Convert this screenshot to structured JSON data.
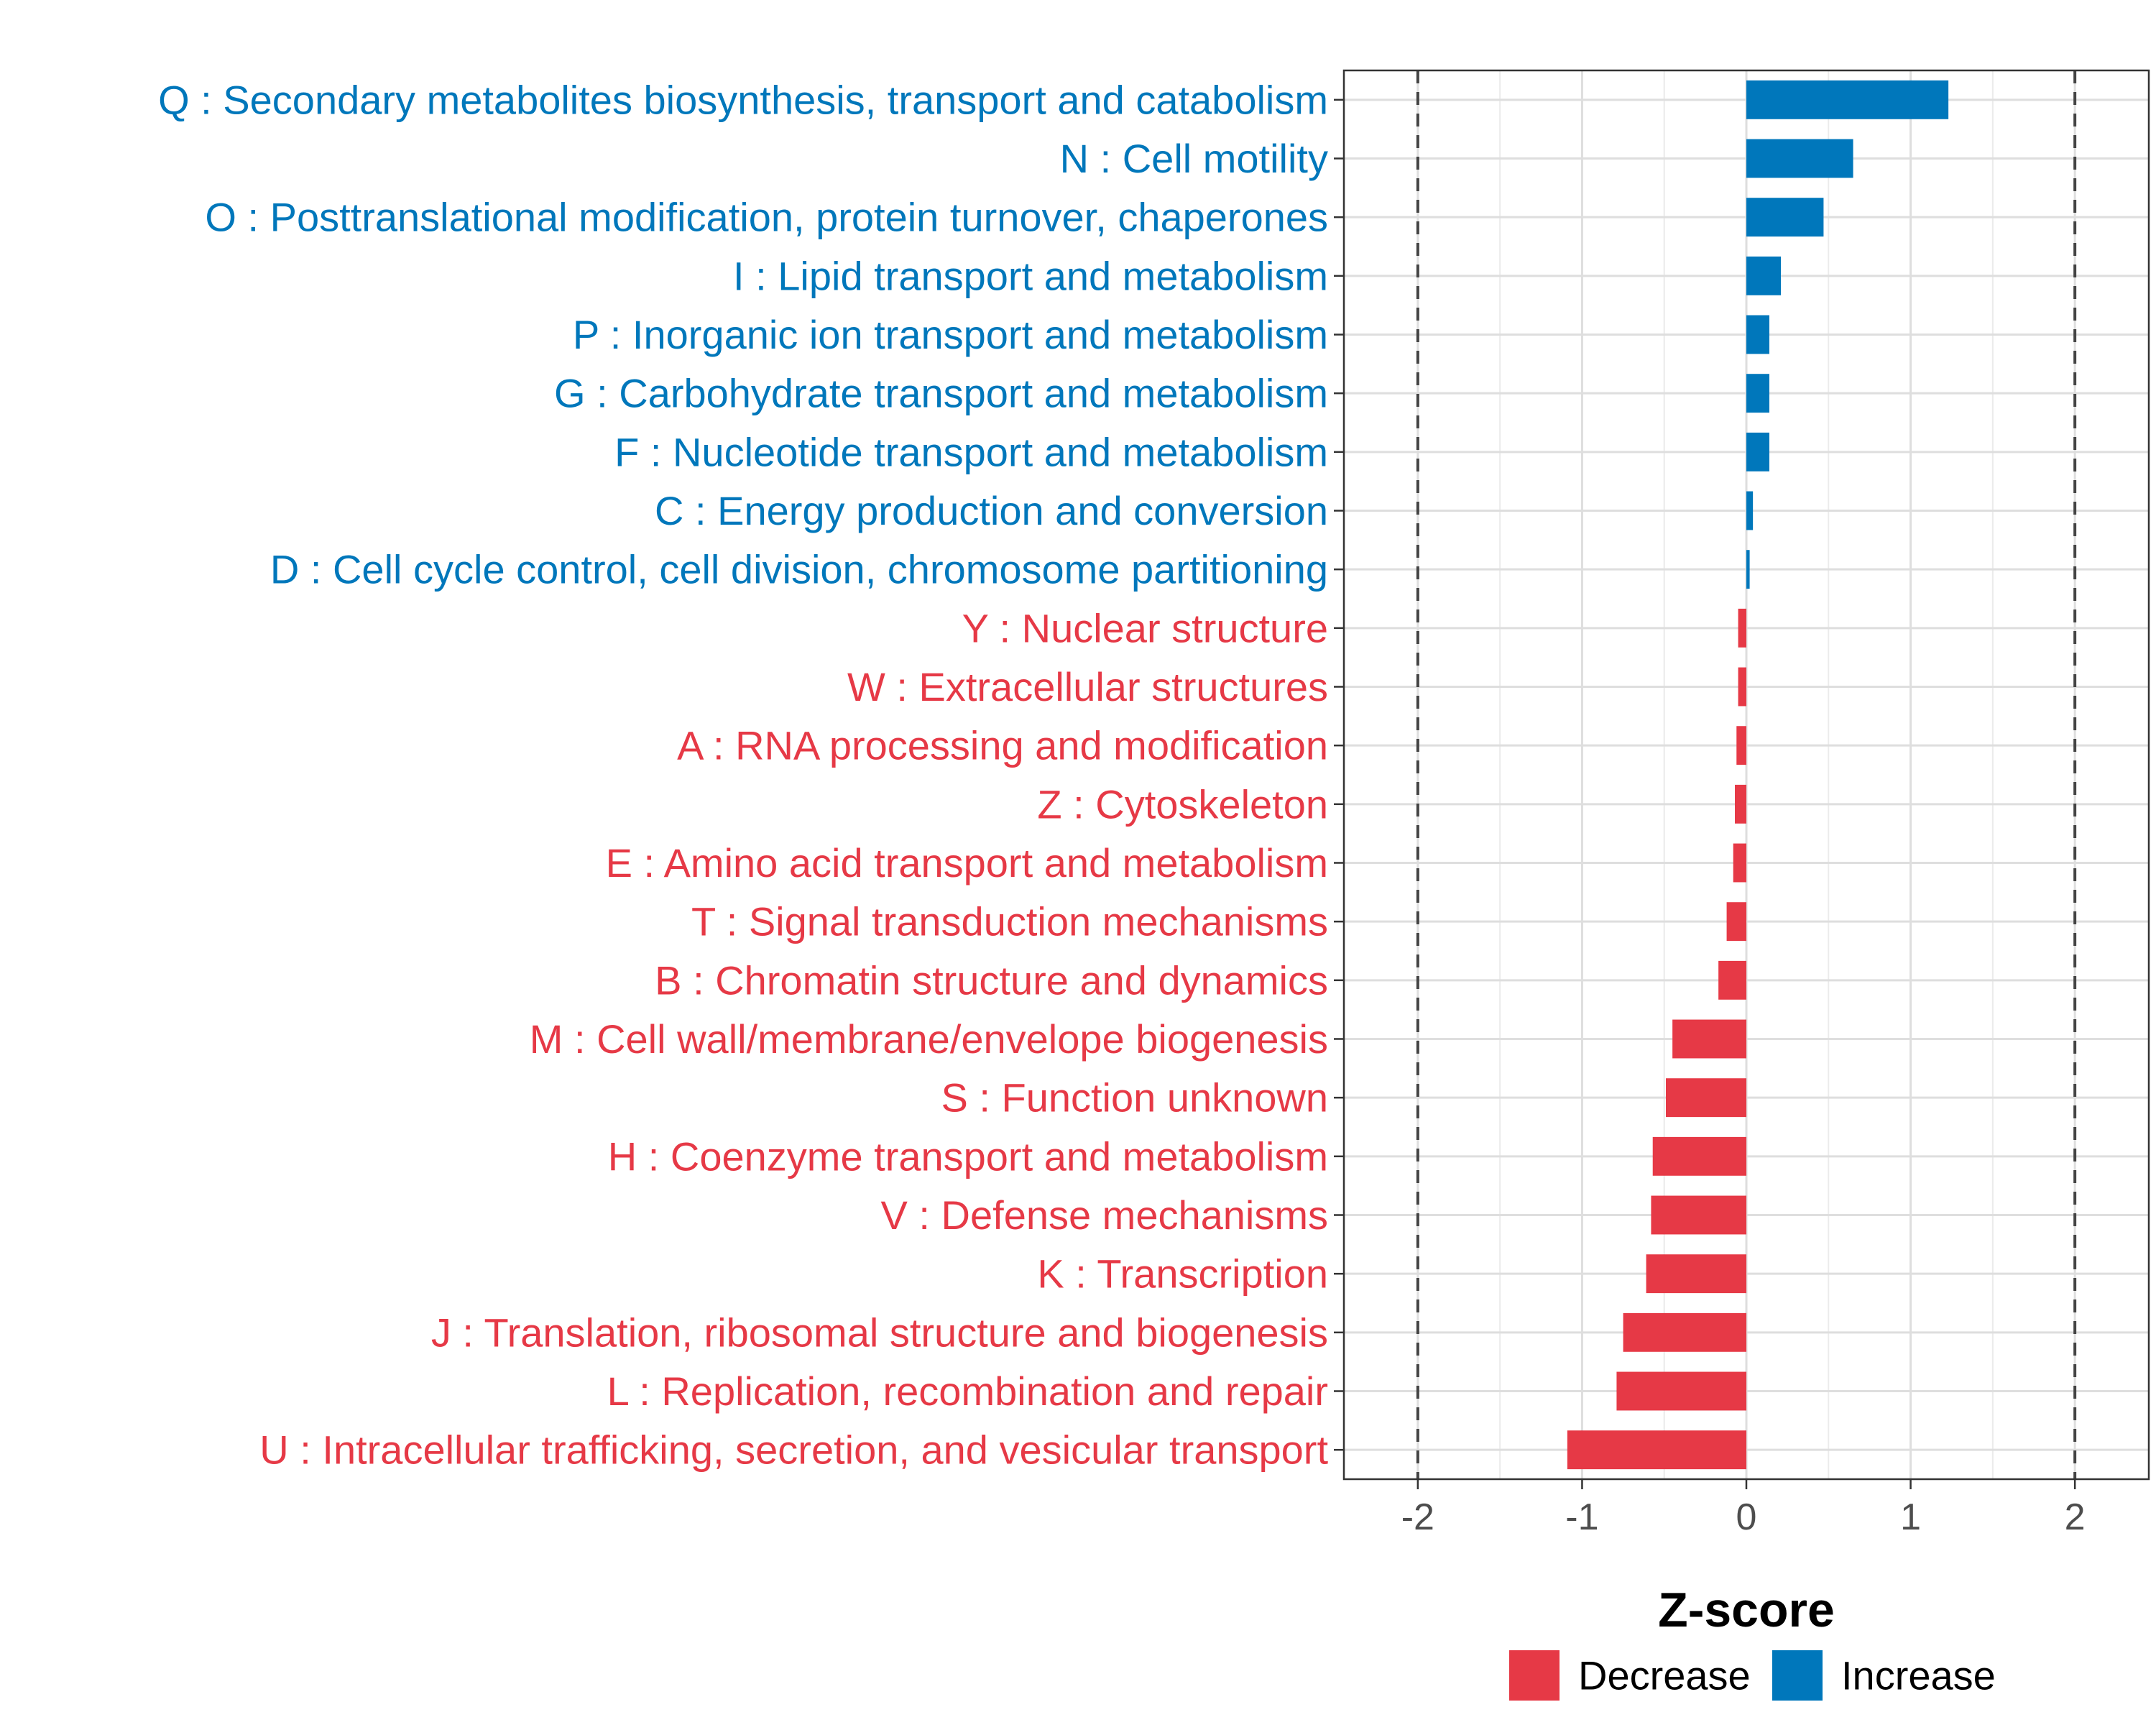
{
  "chart_data": {
    "type": "bar",
    "orientation": "horizontal",
    "title": "",
    "xlabel": "Z-score",
    "ylabel": "",
    "xlim": [
      -2.45,
      2.45
    ],
    "xticks": [
      -2,
      -1,
      0,
      1,
      2
    ],
    "xtick_labels": [
      "-2",
      "-1",
      "0",
      "1",
      "2"
    ],
    "reference_lines": [
      -2,
      2
    ],
    "grid": true,
    "colors": {
      "Increase": "#0077bb",
      "Decrease": "#e63946"
    },
    "categories": [
      "Q : Secondary metabolites biosynthesis, transport and catabolism",
      "N : Cell motility",
      "O : Posttranslational modification, protein turnover, chaperones",
      "I : Lipid transport and metabolism",
      "P : Inorganic ion transport and metabolism",
      "G : Carbohydrate transport and metabolism",
      "F : Nucleotide transport and metabolism",
      "C : Energy production and conversion",
      "D : Cell cycle control, cell division, chromosome partitioning",
      "Y : Nuclear structure",
      "W : Extracellular structures",
      "A : RNA processing and modification",
      "Z : Cytoskeleton",
      "E : Amino acid transport and metabolism",
      "T : Signal transduction mechanisms",
      "B : Chromatin structure and dynamics",
      "M : Cell wall/membrane/envelope biogenesis",
      "S : Function unknown",
      "H : Coenzyme transport and metabolism",
      "V : Defense mechanisms",
      "K : Transcription",
      "J : Translation, ribosomal structure and biogenesis",
      "L : Replication, recombination and repair",
      "U : Intracellular trafficking, secretion, and vesicular transport"
    ],
    "values": [
      1.23,
      0.65,
      0.47,
      0.21,
      0.14,
      0.14,
      0.14,
      0.04,
      0.02,
      -0.05,
      -0.05,
      -0.06,
      -0.07,
      -0.08,
      -0.12,
      -0.17,
      -0.45,
      -0.49,
      -0.57,
      -0.58,
      -0.61,
      -0.75,
      -0.79,
      -1.09
    ],
    "groups": [
      "Increase",
      "Increase",
      "Increase",
      "Increase",
      "Increase",
      "Increase",
      "Increase",
      "Increase",
      "Increase",
      "Decrease",
      "Decrease",
      "Decrease",
      "Decrease",
      "Decrease",
      "Decrease",
      "Decrease",
      "Decrease",
      "Decrease",
      "Decrease",
      "Decrease",
      "Decrease",
      "Decrease",
      "Decrease",
      "Decrease"
    ],
    "legend": {
      "position": "bottom",
      "entries": [
        {
          "label": "Decrease",
          "color": "#e63946"
        },
        {
          "label": "Increase",
          "color": "#0077bb"
        }
      ]
    }
  }
}
